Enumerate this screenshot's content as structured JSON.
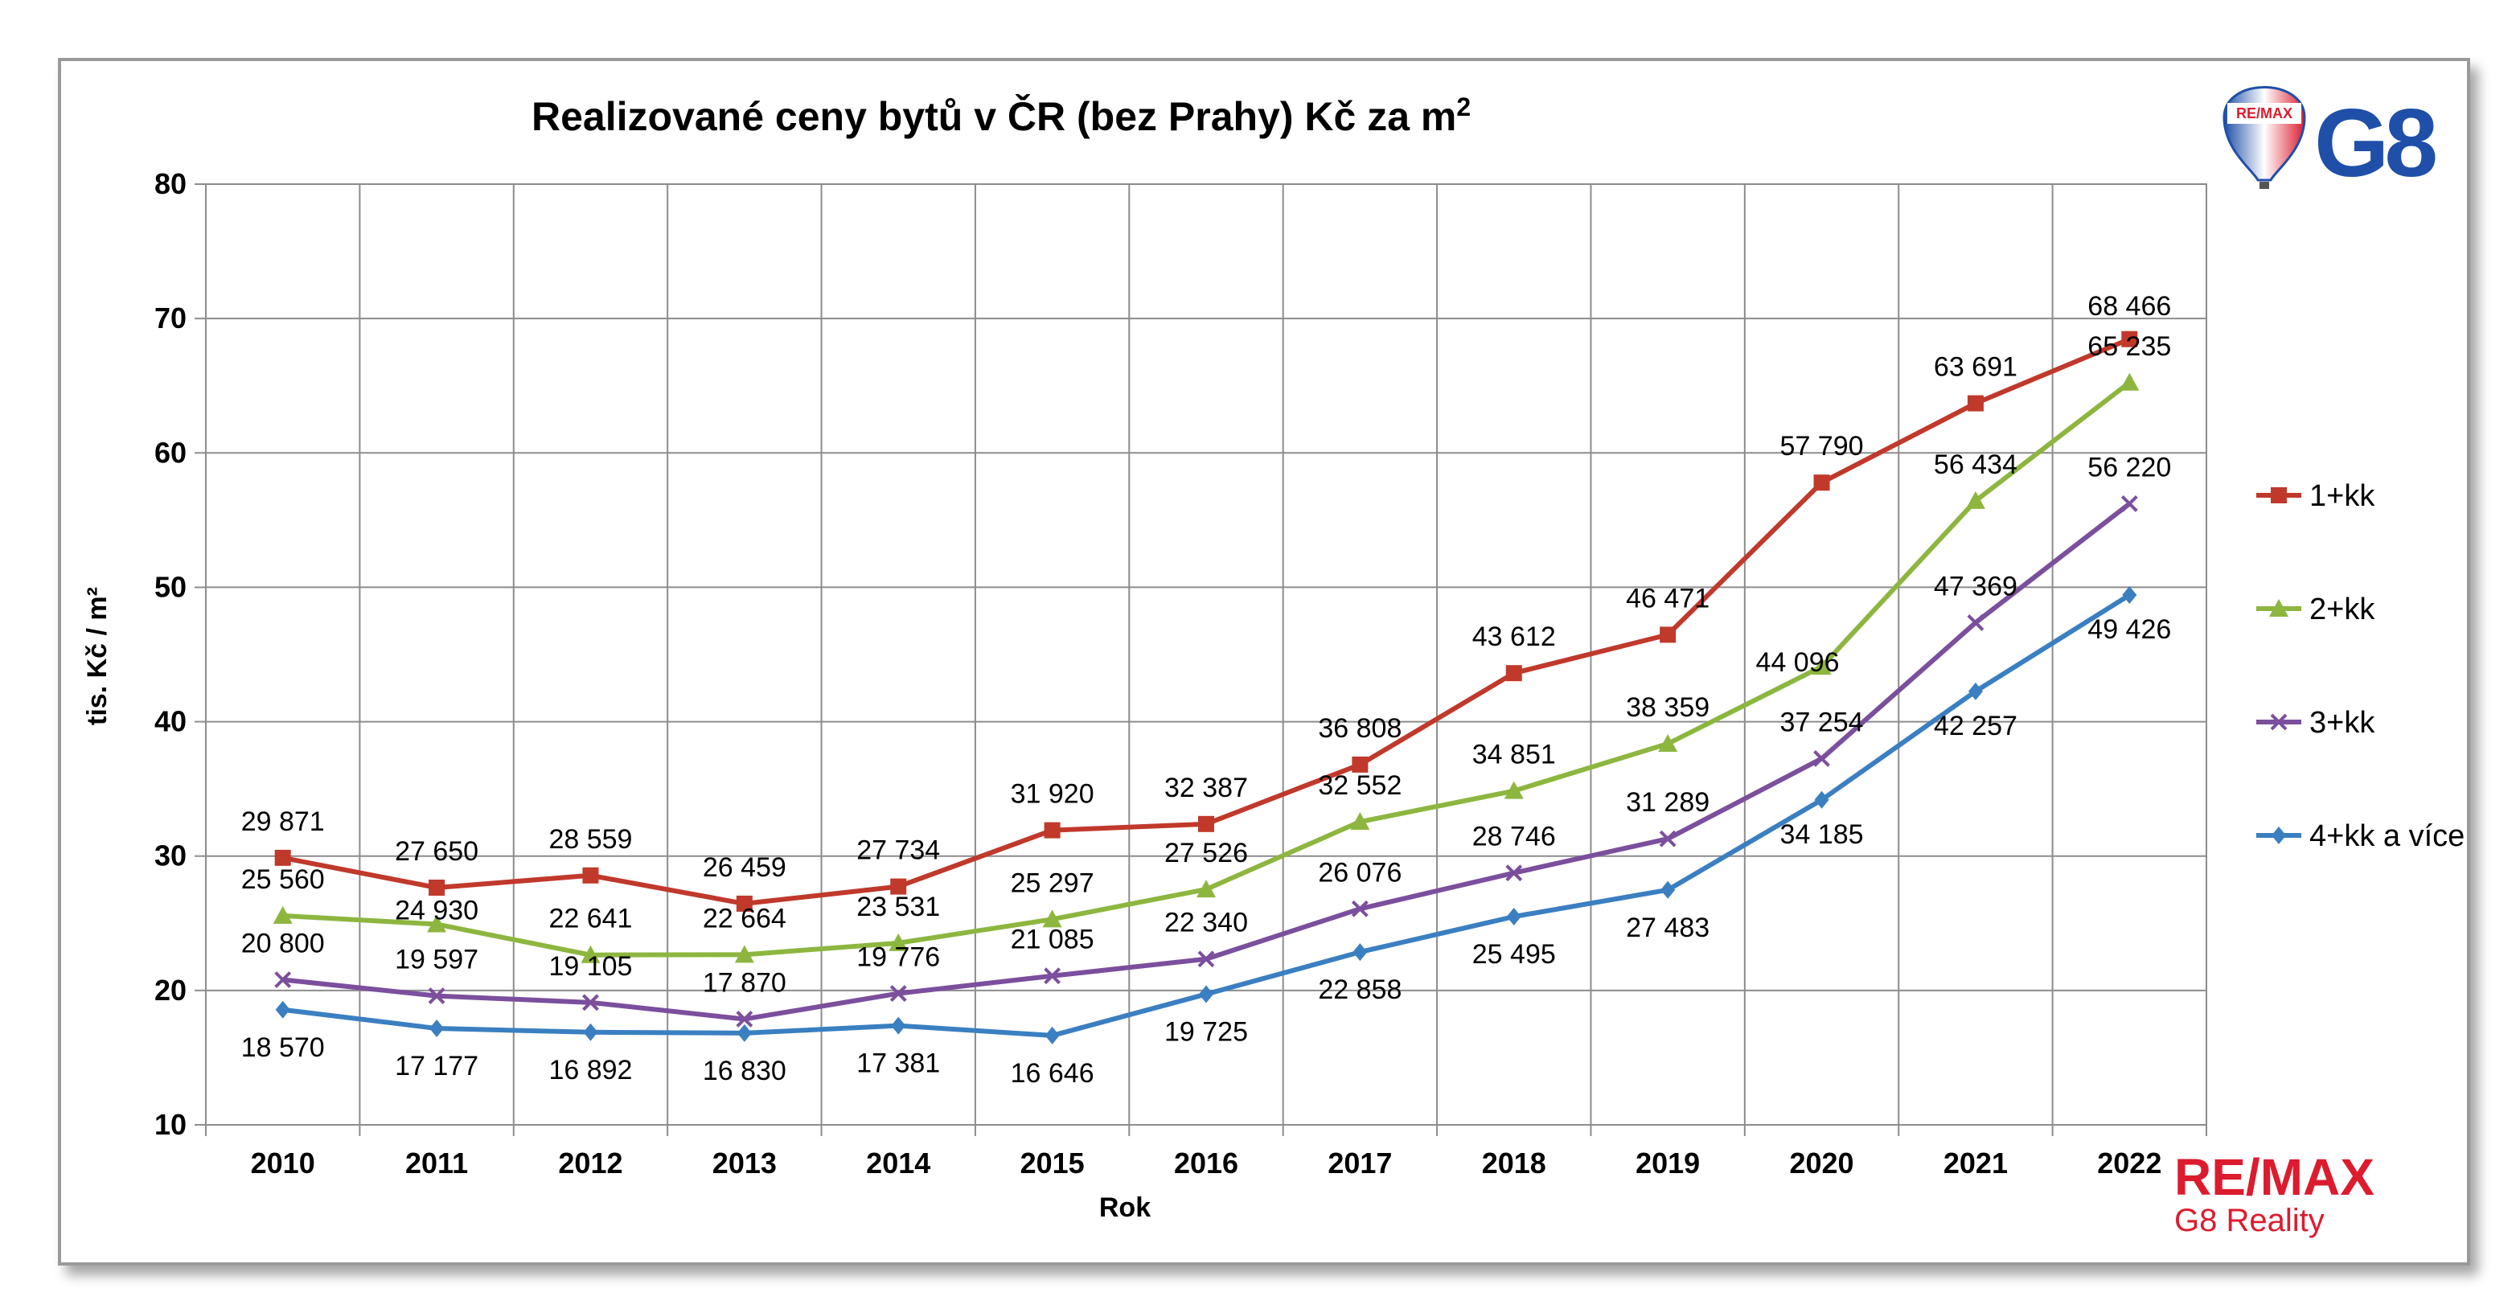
{
  "chart_data": {
    "type": "line",
    "title": "Realizované ceny bytů v ČR (bez Prahy) Kč za m",
    "title_superscript": "2",
    "xlabel": "Rok",
    "ylabel": "tis. Kč / m²",
    "ylim": [
      10,
      80
    ],
    "yticks": [
      "10",
      "20",
      "30",
      "40",
      "50",
      "60",
      "70",
      "80"
    ],
    "grid": true,
    "legend_position": "right",
    "categories": [
      "2010",
      "2011",
      "2012",
      "2013",
      "2014",
      "2015",
      "2016",
      "2017",
      "2018",
      "2019",
      "2020",
      "2021",
      "2022"
    ],
    "series": [
      {
        "name": "1+kk",
        "color": "#c0392b",
        "marker": "square",
        "values": [
          29.871,
          27.65,
          28.559,
          26.459,
          27.734,
          31.92,
          32.387,
          36.808,
          43.612,
          46.471,
          57.79,
          63.691,
          68.466
        ],
        "labels": [
          "29 871",
          "27 650",
          "28 559",
          "26 459",
          "27 734",
          "31 920",
          "32 387",
          "36 808",
          "43 612",
          "46 471",
          "57 790",
          "63 691",
          "68 466"
        ]
      },
      {
        "name": "2+kk",
        "color": "#8db63f",
        "marker": "triangle",
        "values": [
          25.56,
          24.93,
          22.641,
          22.664,
          23.531,
          25.297,
          27.526,
          32.552,
          34.851,
          38.359,
          44.096,
          56.434,
          65.235
        ],
        "labels": [
          "25 560",
          "24 930",
          "22 641",
          "22 664",
          "23 531",
          "25 297",
          "27 526",
          "32 552",
          "34 851",
          "38 359",
          "44 096",
          "56 434",
          "65 235"
        ]
      },
      {
        "name": "3+kk",
        "color": "#7b4f9d",
        "marker": "x",
        "values": [
          20.8,
          19.597,
          19.105,
          17.87,
          19.776,
          21.085,
          22.34,
          26.076,
          28.746,
          31.289,
          37.254,
          47.369,
          56.22
        ],
        "labels": [
          "20 800",
          "19 597",
          "19 105",
          "17 870",
          "19 776",
          "21 085",
          "22 340",
          "26 076",
          "28 746",
          "31 289",
          "37 254",
          "47 369",
          "56 220"
        ]
      },
      {
        "name": "4+kk a více",
        "color": "#3a7fc1",
        "marker": "diamond",
        "values": [
          18.57,
          17.177,
          16.892,
          16.83,
          17.381,
          16.646,
          19.725,
          22.858,
          25.495,
          27.483,
          34.185,
          42.257,
          49.426
        ],
        "labels": [
          "18 570",
          "17 177",
          "16 892",
          "16 830",
          "17 381",
          "16 646",
          "19 725",
          "22 858",
          "25 495",
          "27 483",
          "34 185",
          "42 257",
          "49 426"
        ]
      }
    ]
  },
  "branding": {
    "remax_word": "RE/MAX",
    "remax_sub": "G8 Reality",
    "balloon_text": "RE/MAX",
    "g8_text": "G8",
    "remax_red": "#dc1c2e",
    "remax_blue": "#1f4fa8"
  }
}
